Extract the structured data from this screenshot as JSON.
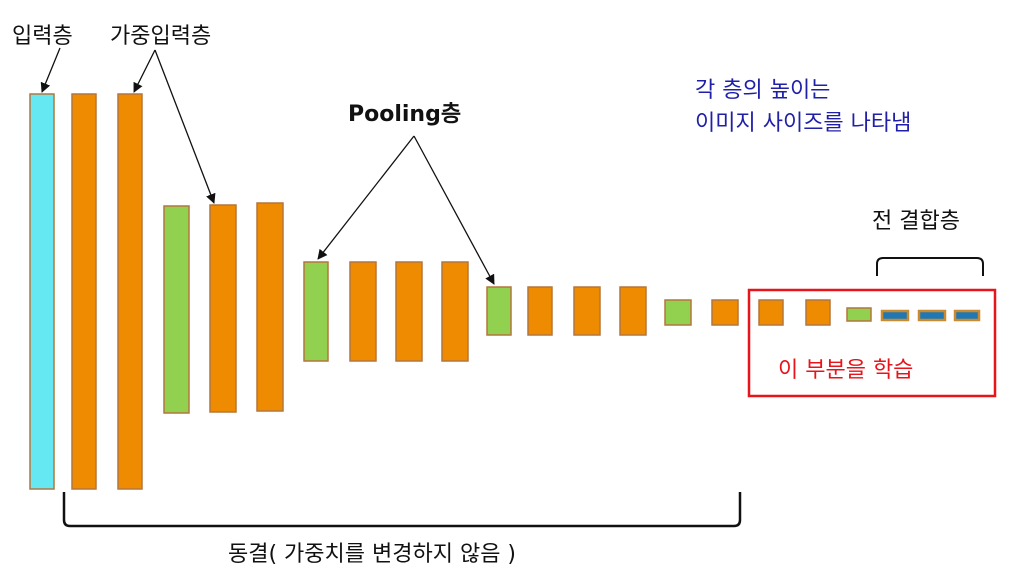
{
  "labels": {
    "input_layer": "입력층",
    "weighted_input_layer": "가중입력층",
    "pooling_layer": "Pooling층",
    "note_line1": "각 층의 높이는",
    "note_line2": "이미지 사이즈를 나타냄",
    "fully_connected": "전 결합층",
    "train_region": "이 부분을 학습",
    "frozen_region": "동결( 가중치를 변경하지 않음 )"
  },
  "colors": {
    "input": "#66e8f3",
    "conv": "#ef8b00",
    "pooling": "#92d050",
    "fc": "#1f77b4",
    "border": "#b4763c",
    "note_text": "#1f1fa8",
    "train_text": "#e8141b",
    "train_box": "#e8141b",
    "text": "#111111"
  },
  "layers": [
    {
      "type": "input"
    },
    {
      "type": "conv"
    },
    {
      "type": "conv"
    },
    {
      "type": "pooling"
    },
    {
      "type": "conv"
    },
    {
      "type": "conv"
    },
    {
      "type": "pooling"
    },
    {
      "type": "conv"
    },
    {
      "type": "conv"
    },
    {
      "type": "conv"
    },
    {
      "type": "pooling"
    },
    {
      "type": "conv"
    },
    {
      "type": "conv"
    },
    {
      "type": "conv"
    },
    {
      "type": "pooling"
    },
    {
      "type": "conv"
    },
    {
      "type": "conv"
    },
    {
      "type": "conv"
    },
    {
      "type": "pooling"
    },
    {
      "type": "fc"
    },
    {
      "type": "fc"
    },
    {
      "type": "fc"
    }
  ]
}
